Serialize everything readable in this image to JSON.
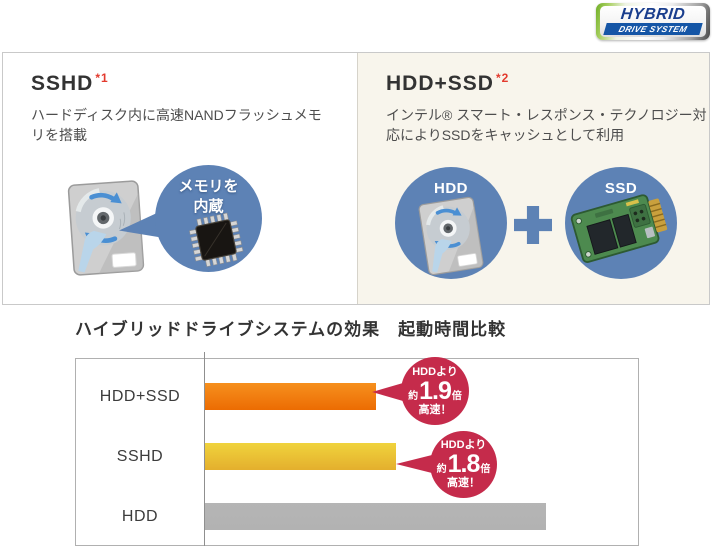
{
  "logo": {
    "title": "HYBRID",
    "subtitle": "DRIVE SYSTEM"
  },
  "sshd_panel": {
    "title": "SSHD",
    "footnote": "*1",
    "description": "ハードディスク内に高速NANDフラッシュメモリを搭載",
    "bubble_line1": "メモリを",
    "bubble_line2": "内蔵"
  },
  "hdd_ssd_panel": {
    "title": "HDD+SSD",
    "footnote": "*2",
    "description": "インテル® スマート・レスポンス・テクノロジー対応によりSSDをキャッシュとして利用",
    "hdd_label": "HDD",
    "ssd_label": "SSD"
  },
  "chart": {
    "title": "ハイブリッドドライブシステムの効果　起動時間比較",
    "badges": [
      {
        "line1": "HDDより",
        "approx": "約",
        "value": "1.9",
        "unit": "倍",
        "line3": "高速！"
      },
      {
        "line1": "HDDより",
        "approx": "約",
        "value": "1.8",
        "unit": "倍",
        "line3": "高速！"
      }
    ]
  },
  "chart_data": {
    "type": "bar",
    "orientation": "horizontal",
    "title": "ハイブリッドドライブシステムの効果　起動時間比較",
    "categories": [
      "HDD+SSD",
      "SSHD",
      "HDD"
    ],
    "values": [
      0.5,
      0.56,
      1.0
    ],
    "value_note": "relative boot time, HDD = 1.00 (shorter bar = faster)",
    "annotations": [
      "HDDより約1.9倍高速！",
      "HDDより約1.8倍高速！",
      ""
    ],
    "bar_gradients": [
      [
        "#f6901e",
        "#ec6c02"
      ],
      [
        "#f0d33d",
        "#e4af2d"
      ],
      [
        "#b5b5b5",
        "#b2b2b2"
      ]
    ],
    "xlim": [
      0,
      1.27
    ],
    "grid": false,
    "legend": false
  },
  "colors": {
    "accent_blue": "#5d82b5",
    "badge_red": "#c52b4b",
    "panel_cream": "#f8f5ec",
    "footnote_red": "#e33a2e"
  }
}
